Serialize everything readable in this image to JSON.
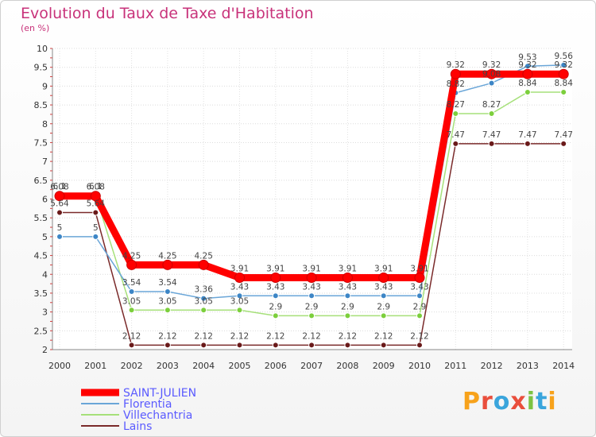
{
  "chart_data": {
    "type": "line",
    "title": "Evolution du Taux de Taxe d'Habitation",
    "ylabel": "(en %)",
    "xlabel": "",
    "ylim": [
      2,
      10
    ],
    "ytick_step": 0.5,
    "y_ticks": [
      "2",
      "2.5",
      "3",
      "3.5",
      "4",
      "4.5",
      "5",
      "5.5",
      "6",
      "6.5",
      "7",
      "7.5",
      "8",
      "8.5",
      "9",
      "9.5",
      "10"
    ],
    "categories": [
      "2000",
      "2001",
      "2002",
      "2003",
      "2004",
      "2005",
      "2006",
      "2007",
      "2008",
      "2009",
      "2010",
      "2011",
      "2012",
      "2013",
      "2014"
    ],
    "grid": true,
    "legend_placement": "bottom-left",
    "series": [
      {
        "name": "SAINT-JULIEN",
        "color": "#ff0000",
        "point_color": "#ff0000",
        "values": [
          6.08,
          6.08,
          4.25,
          4.25,
          4.25,
          3.91,
          3.91,
          3.91,
          3.91,
          3.91,
          3.91,
          9.32,
          9.32,
          9.32,
          9.32
        ],
        "labels": [
          "6.08",
          "6.08",
          "4.25",
          "4.25",
          "4.25",
          "3.91",
          "3.91",
          "3.91",
          "3.91",
          "3.91",
          "3.91",
          "9.32",
          "9.32",
          "9.32",
          "9.32"
        ]
      },
      {
        "name": "Florentia",
        "color": "#6aa6d8",
        "point_color": "#3d86c6",
        "values": [
          5,
          5,
          3.54,
          3.54,
          3.36,
          3.43,
          3.43,
          3.43,
          3.43,
          3.43,
          3.43,
          8.82,
          9.08,
          9.53,
          9.56
        ],
        "labels": [
          "5",
          "5",
          "3.54",
          "3.54",
          "3.36",
          "3.43",
          "3.43",
          "3.43",
          "3.43",
          "3.43",
          "3.43",
          "8.82",
          "9.08",
          "9.53",
          "9.56"
        ]
      },
      {
        "name": "Villechantria",
        "color": "#a6e07a",
        "point_color": "#7ccf3c",
        "values": [
          6.1,
          6.1,
          3.05,
          3.05,
          3.05,
          3.05,
          2.9,
          2.9,
          2.9,
          2.9,
          2.9,
          8.27,
          8.27,
          8.84,
          8.84
        ],
        "labels": [
          "6.1",
          "6.1",
          "3.05",
          "3.05",
          "3.05",
          "3.05",
          "2.9",
          "2.9",
          "2.9",
          "2.9",
          "2.9",
          "8.27",
          "8.27",
          "8.84",
          "8.84"
        ]
      },
      {
        "name": "Lains",
        "color": "#7a2a2a",
        "point_color": "#6a1a1a",
        "values": [
          5.64,
          5.64,
          2.12,
          2.12,
          2.12,
          2.12,
          2.12,
          2.12,
          2.12,
          2.12,
          2.12,
          7.47,
          7.47,
          7.47,
          7.47
        ],
        "labels": [
          "5.64",
          "5.64",
          "2.12",
          "2.12",
          "2.12",
          "2.12",
          "2.12",
          "2.12",
          "2.12",
          "2.12",
          "2.12",
          "7.47",
          "7.47",
          "7.47",
          "7.47"
        ]
      }
    ]
  },
  "logo": {
    "text": "Proxiti",
    "letters": [
      "P",
      "r",
      "o",
      "x",
      "i",
      "t",
      "i"
    ],
    "colors": [
      "#f7a21b",
      "#e94e3c",
      "#3aa5dc",
      "#e94e3c",
      "#7cc242",
      "#3aa5dc",
      "#f7a21b"
    ]
  }
}
